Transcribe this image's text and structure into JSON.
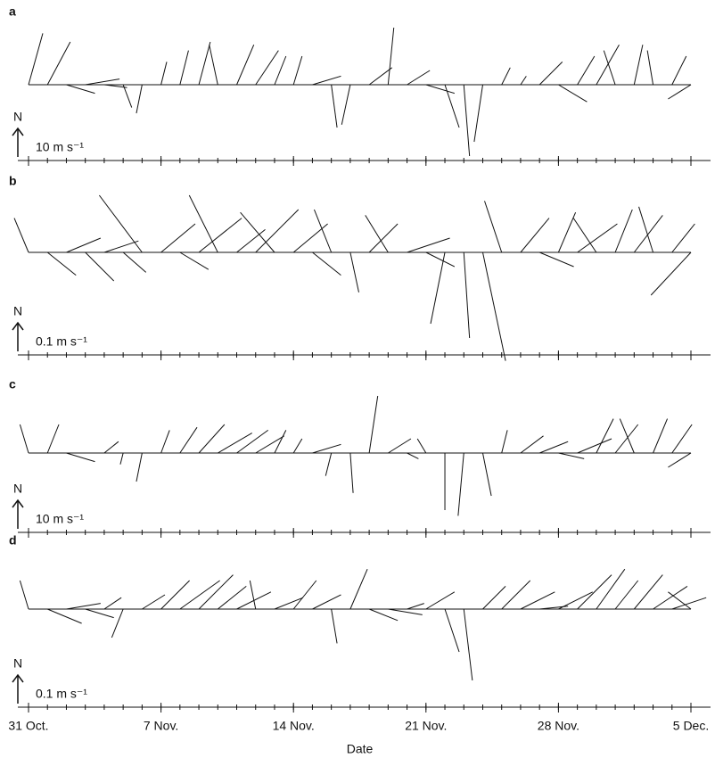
{
  "chart_data": [
    {
      "type": "stick",
      "label": "a",
      "north": "N",
      "scale": {
        "value": 10,
        "label": "10 m s⁻¹"
      },
      "x": [
        0,
        1,
        2,
        3,
        4,
        5,
        6,
        7,
        8,
        9,
        10,
        11,
        12,
        13,
        14,
        15,
        16,
        17,
        18,
        19,
        20,
        21,
        22,
        23,
        24,
        25,
        26,
        27,
        28,
        29,
        30,
        31,
        32,
        33,
        34,
        35
      ],
      "u": [
        5,
        8,
        10,
        12,
        8,
        3,
        -2,
        2,
        3,
        4,
        -3,
        6,
        8,
        4,
        3,
        10,
        2,
        -3,
        8,
        2,
        8,
        10,
        5,
        2,
        -3,
        3,
        2,
        8,
        10,
        6,
        8,
        -4,
        3,
        -2,
        5,
        -8
      ],
      "v": [
        18,
        15,
        -3,
        2,
        -1,
        -8,
        -10,
        8,
        12,
        15,
        14,
        14,
        12,
        10,
        10,
        3,
        -15,
        -14,
        6,
        20,
        5,
        -3,
        -15,
        -25,
        -20,
        6,
        3,
        8,
        -6,
        10,
        14,
        12,
        14,
        12,
        10,
        -5
      ]
    },
    {
      "type": "stick",
      "label": "b",
      "north": "N",
      "scale": {
        "value": 0.1,
        "label": "0.1 m s⁻¹"
      },
      "x": [
        0,
        1,
        2,
        3,
        4,
        5,
        6,
        7,
        8,
        9,
        10,
        11,
        12,
        13,
        14,
        15,
        16,
        17,
        18,
        19,
        20,
        21,
        22,
        23,
        24,
        25,
        26,
        27,
        28,
        29,
        30,
        31,
        32,
        33,
        34,
        35
      ],
      "u": [
        -0.05,
        0.1,
        0.12,
        0.1,
        0.12,
        0.08,
        -0.15,
        0.12,
        0.1,
        0.15,
        -0.1,
        0.1,
        0.15,
        -0.12,
        0.12,
        0.1,
        -0.06,
        0.03,
        0.1,
        -0.08,
        0.15,
        0.1,
        -0.05,
        0.02,
        0.08,
        -0.06,
        0.1,
        0.12,
        0.06,
        0.14,
        -0.08,
        0.06,
        0.1,
        -0.05,
        0.08,
        -0.14
      ],
      "v": [
        0.12,
        -0.08,
        0.05,
        -0.1,
        0.04,
        -0.07,
        0.2,
        0.1,
        -0.06,
        0.12,
        0.2,
        0.08,
        0.15,
        0.14,
        0.1,
        -0.08,
        0.15,
        -0.14,
        0.1,
        0.13,
        0.05,
        -0.05,
        -0.25,
        -0.3,
        -0.38,
        0.18,
        0.12,
        -0.05,
        0.14,
        0.1,
        0.12,
        0.15,
        0.13,
        0.16,
        0.1,
        -0.15
      ]
    },
    {
      "type": "stick",
      "label": "c",
      "north": "N",
      "scale": {
        "value": 10,
        "label": "10 m s⁻¹"
      },
      "x": [
        0,
        1,
        2,
        3,
        4,
        5,
        6,
        7,
        8,
        9,
        10,
        11,
        12,
        13,
        14,
        15,
        16,
        17,
        18,
        19,
        20,
        21,
        22,
        23,
        24,
        25,
        26,
        27,
        28,
        29,
        30,
        31,
        32,
        33,
        34,
        35
      ],
      "u": [
        -3,
        4,
        10,
        10,
        5,
        -1,
        -2,
        3,
        6,
        9,
        12,
        11,
        10,
        4,
        3,
        10,
        -2,
        1,
        3,
        8,
        4,
        -3,
        0,
        -2,
        3,
        2,
        8,
        10,
        9,
        12,
        6,
        8,
        -5,
        5,
        7,
        -8
      ],
      "v": [
        10,
        10,
        -3,
        0,
        4,
        -4,
        -10,
        8,
        9,
        10,
        7,
        8,
        6,
        8,
        5,
        3,
        -8,
        -14,
        20,
        5,
        -2,
        5,
        -20,
        -22,
        -15,
        8,
        6,
        4,
        -2,
        5,
        12,
        10,
        12,
        12,
        10,
        -5
      ]
    },
    {
      "type": "stick",
      "label": "d",
      "north": "N",
      "scale": {
        "value": 0.1,
        "label": "0.1 m s⁻¹"
      },
      "x": [
        0,
        1,
        2,
        3,
        4,
        5,
        6,
        7,
        8,
        9,
        10,
        11,
        12,
        13,
        14,
        15,
        16,
        17,
        18,
        19,
        20,
        21,
        22,
        23,
        24,
        25,
        26,
        27,
        28,
        29,
        30,
        31,
        32,
        33,
        34,
        35
      ],
      "u": [
        -0.03,
        0.12,
        0.12,
        0.1,
        0.06,
        -0.04,
        0.08,
        0.1,
        0.14,
        0.12,
        0.1,
        0.12,
        -0.02,
        0.1,
        0.08,
        0.1,
        0.02,
        0.06,
        0.1,
        0.12,
        0.06,
        0.1,
        0.05,
        0.03,
        0.08,
        0.1,
        0.12,
        0.1,
        0.12,
        0.12,
        0.1,
        0.08,
        0.1,
        0.12,
        0.12,
        -0.08
      ],
      "v": [
        0.1,
        -0.05,
        0.02,
        -0.03,
        0.04,
        -0.1,
        0.05,
        0.1,
        0.1,
        0.12,
        0.08,
        0.06,
        0.1,
        0.04,
        0.1,
        0.05,
        -0.12,
        0.14,
        -0.04,
        -0.02,
        0.02,
        0.06,
        -0.15,
        -0.25,
        0.08,
        0.1,
        0.06,
        0.01,
        0.06,
        0.12,
        0.14,
        0.1,
        0.12,
        0.08,
        0.04,
        0.06
      ]
    }
  ],
  "x_axis": {
    "xlim": [
      0,
      35
    ],
    "xlabel": "Date",
    "xticks": [
      {
        "value": 0,
        "label": "31 Oct."
      },
      {
        "value": 7,
        "label": "7 Nov."
      },
      {
        "value": 14,
        "label": "14 Nov."
      },
      {
        "value": 21,
        "label": "21 Nov."
      },
      {
        "value": 28,
        "label": "28 Nov."
      },
      {
        "value": 35,
        "label": "5 Dec."
      }
    ],
    "minor_xticks": [
      0,
      1,
      2,
      3,
      4,
      5,
      6,
      7,
      8,
      9,
      10,
      11,
      12,
      13,
      14,
      15,
      16,
      17,
      18,
      19,
      20,
      21,
      22,
      23,
      24,
      25,
      26,
      27,
      28,
      29,
      30,
      31,
      32,
      33,
      34,
      35
    ]
  }
}
